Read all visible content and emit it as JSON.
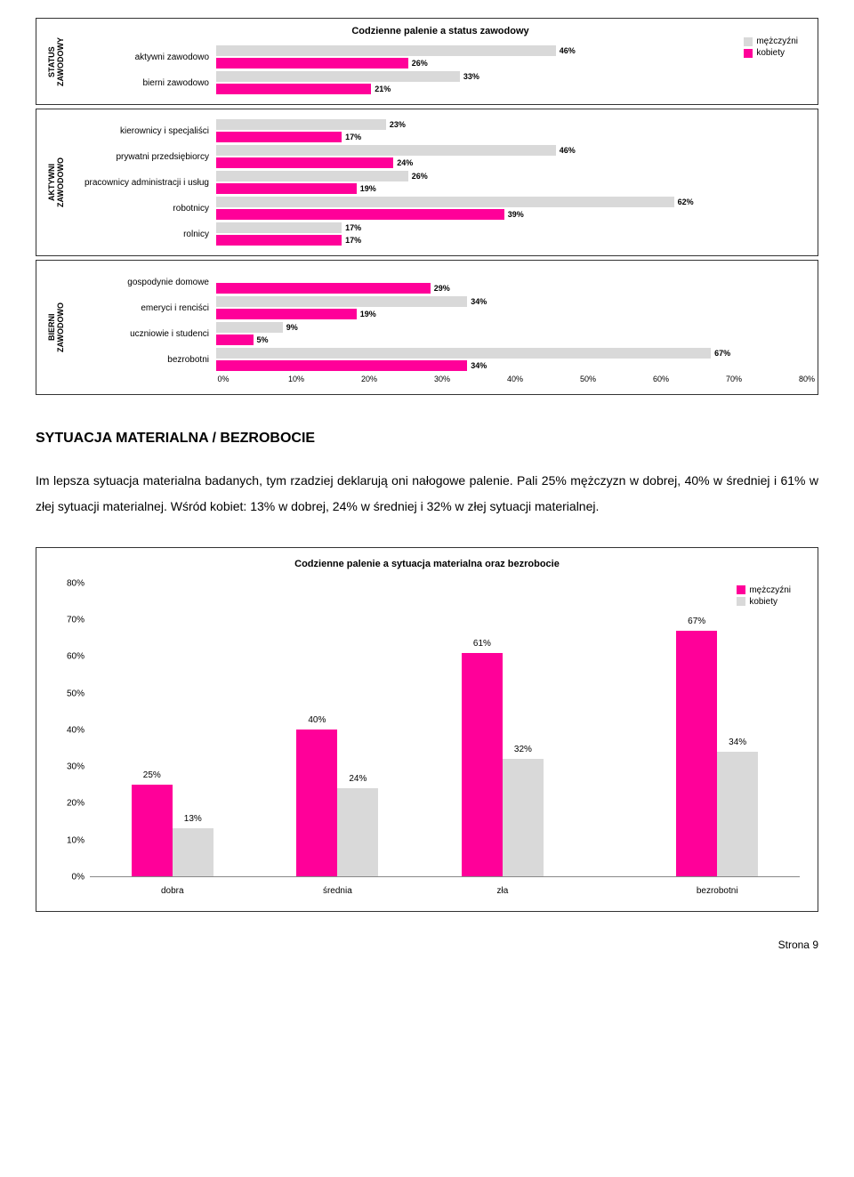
{
  "colors": {
    "men": "#d9d9d9",
    "women": "#ff0099",
    "border": "#333333",
    "text": "#000000"
  },
  "chart1": {
    "title": "Codzienne palenie a status zawodowy",
    "xmax": 80,
    "xtick_step": 10,
    "xtick_suffix": "%",
    "legend": {
      "men": "mężczyźni",
      "women": "kobiety"
    },
    "panels": [
      {
        "label": "STATUS\nZAWODOWY",
        "show_title": true,
        "show_legend": true,
        "rows": [
          {
            "category": "aktywni zawodowo",
            "men": 46,
            "women": 26
          },
          {
            "category": "bierni zawodowo",
            "men": 33,
            "women": 21
          }
        ]
      },
      {
        "label": "AKTYWNI\nZAWODOWO",
        "rows": [
          {
            "category": "kierownicy i specjaliści",
            "men": 23,
            "women": 17
          },
          {
            "category": "prywatni przedsiębiorcy",
            "men": 46,
            "women": 24
          },
          {
            "category": "pracownicy administracji i usług",
            "men": 26,
            "women": 19
          },
          {
            "category": "robotnicy",
            "men": 62,
            "women": 39
          },
          {
            "category": "rolnicy",
            "men": 17,
            "women": 17
          }
        ]
      },
      {
        "label": "BIERNI\nZAWODOWO",
        "show_axis": true,
        "rows": [
          {
            "category": "gospodynie domowe",
            "men": null,
            "women": 29
          },
          {
            "category": "emeryci i renciści",
            "men": 34,
            "women": 19
          },
          {
            "category": "uczniowie i studenci",
            "men": 9,
            "women": 5
          },
          {
            "category": "bezrobotni",
            "men": 67,
            "women": 34
          }
        ]
      }
    ]
  },
  "heading": "SYTUACJA MATERIALNA / BEZROBOCIE",
  "paragraph": "Im lepsza sytuacja materialna badanych, tym rzadziej deklarują oni nałogowe palenie. Pali 25% mężczyzn w dobrej, 40% w średniej i 61% w złej sytuacji materialnej. Wśród kobiet: 13% w dobrej, 24% w średniej i 32% w złej sytuacji materialnej.",
  "chart2": {
    "title": "Codzienne palenie a sytuacja materialna oraz bezrobocie",
    "ymax": 80,
    "ytick_step": 10,
    "ytick_suffix": "%",
    "legend": {
      "men": "mężczyźni",
      "women": "kobiety"
    },
    "categories": [
      "dobra",
      "średnia",
      "zła",
      "bezrobotni"
    ],
    "men": [
      25,
      40,
      61,
      67
    ],
    "women": [
      13,
      24,
      32,
      34
    ],
    "gap_before_last": true
  },
  "footer": "Strona 9"
}
